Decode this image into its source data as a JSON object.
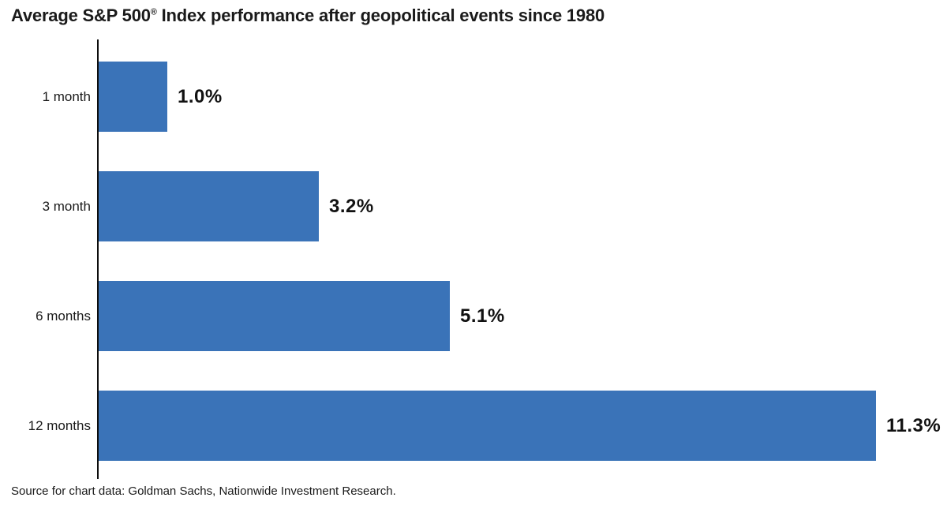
{
  "title_parts": {
    "pre": "Average S&P 500",
    "reg": "®",
    "post": " Index performance after geopolitical events since 1980"
  },
  "source": "Source for chart data: Goldman Sachs, Nationwide Investment Research.",
  "chart_data": {
    "type": "bar",
    "orientation": "horizontal",
    "title": "Average S&P 500® Index performance after geopolitical events since 1980",
    "categories": [
      "1 month",
      "3 month",
      "6 months",
      "12 months"
    ],
    "values": [
      1.0,
      3.2,
      5.1,
      11.3
    ],
    "value_labels": [
      "1.0%",
      "3.2%",
      "5.1%",
      "11.3%"
    ],
    "xlabel": "",
    "ylabel": "",
    "xlim": [
      0,
      12.4
    ],
    "grid": false,
    "legend": false,
    "bar_color": "#3a73b8",
    "axis_color": "#0d0d0d",
    "text_color": "#1a1a1a",
    "source_note": "Source for chart data: Goldman Sachs, Nationwide Investment Research."
  }
}
